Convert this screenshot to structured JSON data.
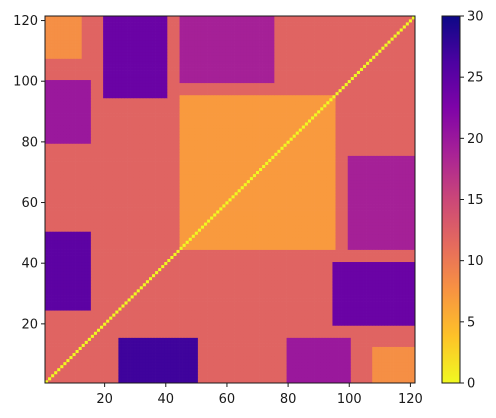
{
  "chart_data": {
    "type": "heatmap",
    "title": "",
    "xlabel": "",
    "ylabel": "",
    "grid": false,
    "matrix_size": 121,
    "xlim": [
      1,
      121
    ],
    "ylim": [
      1,
      121
    ],
    "x_ticks": [
      20,
      40,
      60,
      80,
      100,
      120
    ],
    "y_ticks": [
      20,
      40,
      60,
      80,
      100,
      120
    ],
    "x_tick_labels": [
      "20",
      "40",
      "60",
      "80",
      "100",
      "120"
    ],
    "y_tick_labels": [
      "20",
      "40",
      "60",
      "80",
      "100",
      "120"
    ],
    "diagonal_value": 0,
    "colorbar": {
      "min": 0,
      "max": 30,
      "ticks": [
        0,
        5,
        10,
        15,
        20,
        25,
        30
      ],
      "tick_labels": [
        "0",
        "5",
        "10",
        "15",
        "20",
        "25",
        "30"
      ],
      "colormap": "plasma_r",
      "colors": [
        "#f0f921",
        "#fdc328",
        "#f89441",
        "#e56b5d",
        "#cb4778",
        "#a82296",
        "#7e03a8",
        "#4c02a1",
        "#0d0887"
      ]
    },
    "regions": [
      {
        "x": [
          1,
          121
        ],
        "y": [
          1,
          121
        ],
        "value": 12
      },
      {
        "x": [
          1,
          15
        ],
        "y": [
          25,
          50
        ],
        "value": 25
      },
      {
        "x": [
          25,
          50
        ],
        "y": [
          1,
          15
        ],
        "value": 27
      },
      {
        "x": [
          20,
          40
        ],
        "y": [
          95,
          121
        ],
        "value": 24
      },
      {
        "x": [
          95,
          121
        ],
        "y": [
          20,
          40
        ],
        "value": 24
      },
      {
        "x": [
          1,
          15
        ],
        "y": [
          80,
          100
        ],
        "value": 20
      },
      {
        "x": [
          80,
          100
        ],
        "y": [
          1,
          15
        ],
        "value": 20
      },
      {
        "x": [
          100,
          121
        ],
        "y": [
          45,
          75
        ],
        "value": 19
      },
      {
        "x": [
          45,
          75
        ],
        "y": [
          100,
          121
        ],
        "value": 19
      },
      {
        "x": [
          45,
          95
        ],
        "y": [
          45,
          95
        ],
        "value": 7
      },
      {
        "x": [
          1,
          12
        ],
        "y": [
          108,
          121
        ],
        "value": 8
      },
      {
        "x": [
          108,
          121
        ],
        "y": [
          1,
          12
        ],
        "value": 8
      }
    ]
  }
}
